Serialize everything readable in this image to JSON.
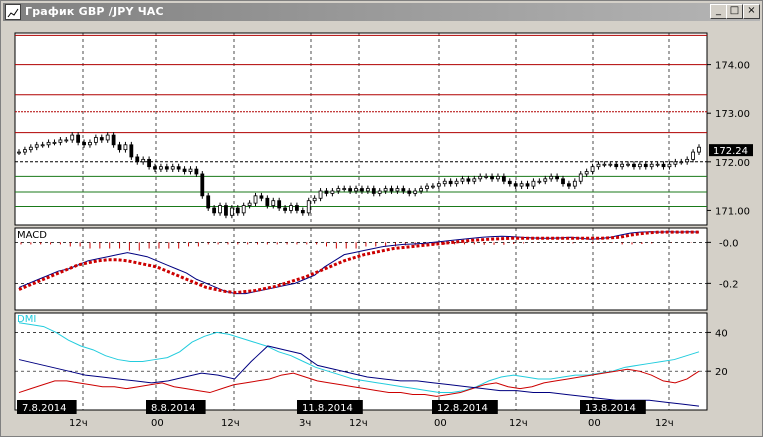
{
  "window": {
    "title": "График GBP /JPY ЧАС",
    "buttons": {
      "minimize": "_",
      "maximize": "□",
      "close": "×"
    }
  },
  "colors": {
    "background": "#ffffff",
    "frame": "#d4d0c8",
    "candle": "#000000",
    "resistance": "#b00000",
    "support": "#1a7a1a",
    "macd_line": "#000080",
    "macd_signal": "#cc0000",
    "dmi_adx": "#22ccdd",
    "dmi_plus": "#cc0000",
    "dmi_minus": "#000080",
    "date_bg": "#000000",
    "date_text": "#ffffff"
  },
  "panels": {
    "price": {
      "y_range": [
        170.7,
        174.65
      ],
      "tick_labels": [
        "174.00",
        "173.00",
        "172.00",
        "171.00"
      ],
      "tick_values": [
        174.0,
        173.0,
        172.0,
        171.0
      ],
      "last_price": "172.24",
      "resistance_levels": [
        174.6,
        174.0,
        173.38,
        173.03,
        172.6
      ],
      "dotted_level": 173.03,
      "support_levels": [
        172.0,
        171.7,
        171.38,
        171.08
      ],
      "dashed_level": 172.0,
      "candles_close": [
        172.2,
        172.25,
        172.3,
        172.35,
        172.35,
        172.4,
        172.4,
        172.45,
        172.45,
        172.55,
        172.4,
        172.35,
        172.4,
        172.5,
        172.45,
        172.55,
        172.35,
        172.25,
        172.35,
        172.1,
        172.0,
        172.05,
        171.9,
        171.85,
        171.9,
        171.85,
        171.9,
        171.85,
        171.8,
        171.85,
        171.75,
        171.3,
        171.05,
        170.95,
        171.1,
        170.9,
        171.05,
        170.95,
        171.1,
        171.15,
        171.3,
        171.25,
        171.1,
        171.2,
        171.05,
        171.0,
        171.1,
        171.0,
        170.95,
        171.2,
        171.25,
        171.4,
        171.35,
        171.4,
        171.45,
        171.45,
        171.4,
        171.45,
        171.4,
        171.45,
        171.35,
        171.4,
        171.45,
        171.4,
        171.45,
        171.4,
        171.35,
        171.4,
        171.45,
        171.5,
        171.5,
        171.55,
        171.6,
        171.55,
        171.6,
        171.65,
        171.6,
        171.65,
        171.7,
        171.7,
        171.65,
        171.7,
        171.6,
        171.55,
        171.5,
        171.55,
        171.5,
        171.6,
        171.6,
        171.65,
        171.7,
        171.65,
        171.55,
        171.5,
        171.6,
        171.75,
        171.8,
        171.9,
        171.95,
        171.95,
        171.95,
        171.9,
        171.95,
        171.95,
        171.9,
        171.95,
        171.9,
        171.95,
        171.95,
        171.9,
        171.95,
        172.0,
        172.0,
        172.05,
        172.2,
        172.3
      ]
    },
    "macd": {
      "label": "MACD",
      "y_range": [
        -0.33,
        0.07
      ],
      "tick_labels": [
        "-0.0",
        "-0.2"
      ],
      "tick_values": [
        0.0,
        -0.2
      ],
      "macd": [
        -0.22,
        -0.2,
        -0.18,
        -0.16,
        -0.14,
        -0.13,
        -0.11,
        -0.09,
        -0.08,
        -0.07,
        -0.06,
        -0.05,
        -0.06,
        -0.07,
        -0.09,
        -0.11,
        -0.13,
        -0.15,
        -0.18,
        -0.2,
        -0.22,
        -0.24,
        -0.25,
        -0.25,
        -0.24,
        -0.23,
        -0.22,
        -0.21,
        -0.2,
        -0.18,
        -0.16,
        -0.12,
        -0.09,
        -0.06,
        -0.05,
        -0.04,
        -0.03,
        -0.02,
        -0.015,
        -0.01,
        -0.008,
        -0.005,
        0.0,
        0.005,
        0.01,
        0.015,
        0.02,
        0.025,
        0.028,
        0.03,
        0.028,
        0.025,
        0.022,
        0.02,
        0.02,
        0.022,
        0.025,
        0.02,
        0.015,
        0.018,
        0.025,
        0.035,
        0.045,
        0.05,
        0.052,
        0.05,
        0.052,
        0.05,
        0.052,
        0.05
      ],
      "signal": [
        -0.23,
        -0.21,
        -0.19,
        -0.17,
        -0.15,
        -0.13,
        -0.11,
        -0.1,
        -0.09,
        -0.085,
        -0.085,
        -0.09,
        -0.1,
        -0.11,
        -0.12,
        -0.14,
        -0.16,
        -0.18,
        -0.2,
        -0.22,
        -0.23,
        -0.24,
        -0.245,
        -0.24,
        -0.235,
        -0.225,
        -0.215,
        -0.2,
        -0.185,
        -0.17,
        -0.15,
        -0.13,
        -0.11,
        -0.09,
        -0.075,
        -0.06,
        -0.05,
        -0.04,
        -0.03,
        -0.025,
        -0.02,
        -0.015,
        -0.01,
        -0.005,
        0.0,
        0.005,
        0.01,
        0.013,
        0.016,
        0.018,
        0.02,
        0.02,
        0.02,
        0.02,
        0.02,
        0.02,
        0.02,
        0.02,
        0.02,
        0.02,
        0.022,
        0.025,
        0.035,
        0.042,
        0.047,
        0.05,
        0.05,
        0.05,
        0.05,
        0.05
      ],
      "histogram": [
        0.01,
        0.01,
        0.01,
        0.01,
        0.01,
        0.02,
        0.02,
        0.03,
        0.03,
        0.03,
        0.03,
        0.04,
        0.04,
        0.03,
        0.03,
        0.03,
        0.03,
        0.02,
        0.02,
        0.01,
        0.01,
        0.01,
        0.01,
        0.01,
        0.01,
        0.01,
        0.01,
        0.01,
        0.01,
        0.01,
        0.01,
        0.02,
        0.03,
        0.03,
        0.03,
        0.02,
        0.02,
        0.02,
        0.02,
        0.015,
        0.015,
        0.01,
        0.01,
        0.01,
        0.01,
        0.01,
        0.01,
        0.012,
        0.012,
        0.012,
        0.008,
        0.005,
        0.002,
        0.0,
        0.0,
        0.002,
        0.005,
        0.0,
        0.005,
        0.002,
        0.003,
        0.01,
        0.01,
        0.008,
        0.005,
        0.0,
        0.002,
        0.0,
        0.002,
        0.0
      ]
    },
    "dmi": {
      "label": "DMI",
      "y_range": [
        0,
        50
      ],
      "tick_labels": [
        "40",
        "20"
      ],
      "tick_values": [
        40,
        20
      ],
      "adx": [
        45,
        44,
        43,
        40,
        36,
        33,
        31,
        28,
        26,
        25,
        25,
        26,
        27,
        30,
        35,
        38,
        40,
        39,
        37,
        35,
        33,
        30,
        28,
        25,
        22,
        20,
        18,
        16,
        15,
        14,
        13,
        12,
        11,
        10,
        9,
        9,
        10,
        12,
        15,
        17,
        18,
        17,
        16,
        16,
        17,
        18,
        18,
        19,
        20,
        22,
        23,
        24,
        25,
        26,
        28,
        30
      ],
      "plus_di": [
        9,
        11,
        13,
        15,
        15,
        14,
        13,
        12,
        12,
        11,
        12,
        13,
        14,
        12,
        11,
        10,
        9,
        11,
        13,
        14,
        15,
        16,
        18,
        19,
        17,
        15,
        14,
        13,
        12,
        11,
        10,
        9,
        9,
        8,
        8,
        7,
        8,
        9,
        11,
        13,
        14,
        12,
        11,
        12,
        14,
        15,
        16,
        17,
        18,
        19,
        20,
        21,
        20,
        18,
        15,
        14,
        16,
        20
      ],
      "minus_di": [
        26,
        24,
        22,
        20,
        18,
        17,
        16,
        15,
        14,
        15,
        17,
        19,
        18,
        16,
        25,
        33,
        31,
        29,
        23,
        21,
        19,
        17,
        16,
        15,
        15,
        14,
        13,
        12,
        11,
        10,
        10,
        9,
        9,
        8,
        7,
        6,
        5,
        5,
        5,
        4,
        3,
        2
      ]
    }
  },
  "time_axis": {
    "date_labels": [
      "7.8.2014",
      "8.8.2014",
      "11.8.2014",
      "12.8.2014",
      "13.8.2014"
    ],
    "hour_labels": [
      "12ч",
      "00",
      "12ч",
      "3ч",
      "12ч",
      "00",
      "12ч",
      "00",
      "12ч"
    ]
  }
}
